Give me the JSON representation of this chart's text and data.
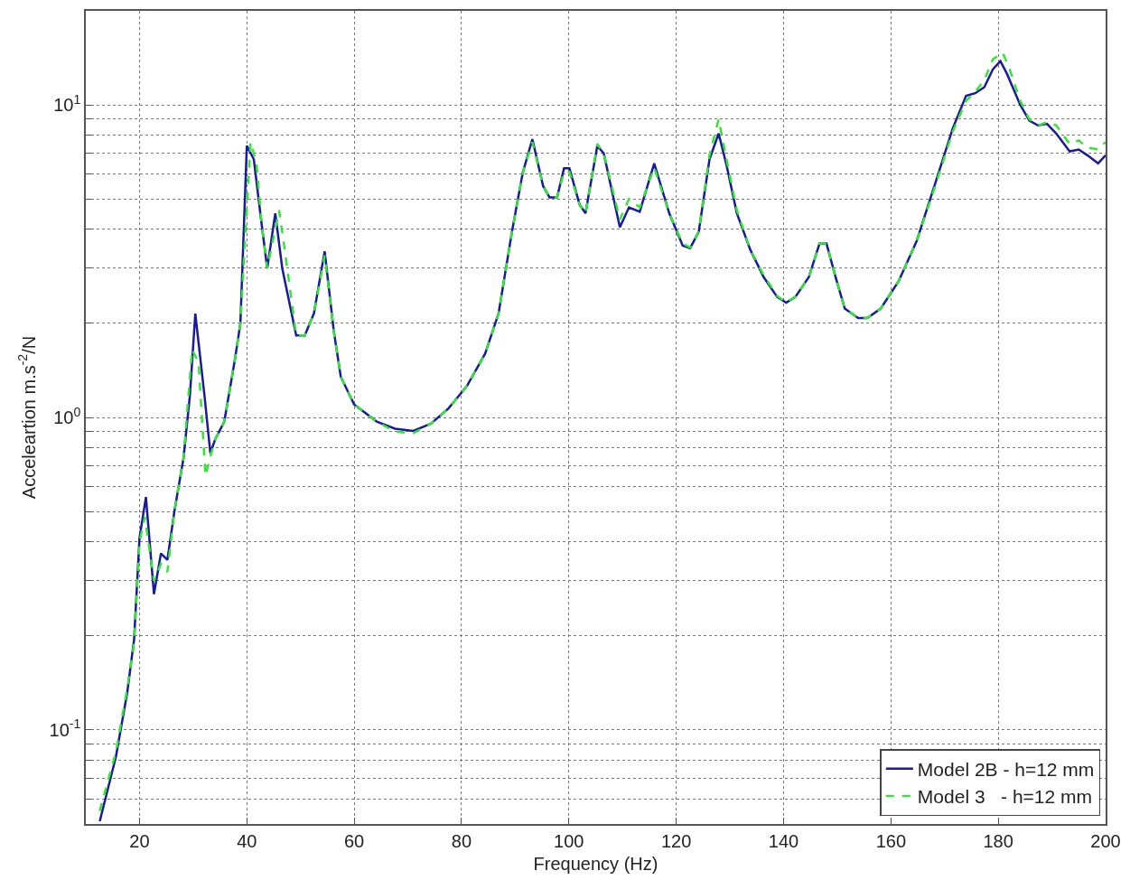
{
  "chart_data": {
    "type": "line",
    "xlabel": "Frequency (Hz)",
    "ylabel": "Acceleartion m.s$^{-2}$/N",
    "log": "y",
    "grid": true,
    "legend": "bottom right",
    "marker": "none",
    "xlim": [
      10,
      200
    ],
    "xticks": [
      20,
      40,
      60,
      80,
      100,
      120,
      140,
      160,
      180,
      200
    ],
    "ylim": [
      0.05,
      20
    ],
    "yticks": [
      {
        "value": 0.05,
        "label": null
      },
      {
        "value": 0.06,
        "label": null
      },
      {
        "value": 0.07,
        "label": null
      },
      {
        "value": 0.08,
        "label": null
      },
      {
        "value": 0.09,
        "label": null
      },
      {
        "value": 0.1,
        "label": "10$^{-1}$"
      },
      {
        "value": 0.2,
        "label": null
      },
      {
        "value": 0.3,
        "label": null
      },
      {
        "value": 0.4,
        "label": null
      },
      {
        "value": 0.5,
        "label": null
      },
      {
        "value": 0.6,
        "label": null
      },
      {
        "value": 0.7,
        "label": null
      },
      {
        "value": 0.8,
        "label": null
      },
      {
        "value": 0.9,
        "label": null
      },
      {
        "value": 1,
        "label": "10$^{0}$"
      },
      {
        "value": 2,
        "label": null
      },
      {
        "value": 3,
        "label": null
      },
      {
        "value": 4,
        "label": null
      },
      {
        "value": 5,
        "label": null
      },
      {
        "value": 6,
        "label": null
      },
      {
        "value": 7,
        "label": null
      },
      {
        "value": 8,
        "label": null
      },
      {
        "value": 9,
        "label": null
      },
      {
        "value": 10,
        "label": "10$^{1}$"
      },
      {
        "value": 20,
        "label": null
      }
    ],
    "series": [
      {
        "name": "Model 2B - h=12 mm",
        "color": "#1a1a9c",
        "line_style": "solid",
        "x": [
          12.6,
          15.6,
          17.7,
          19,
          20,
          21.2,
          22.7,
          24,
          25.2,
          26.5,
          28.2,
          29.4,
          30.4,
          32.1,
          33.2,
          34.1,
          35.8,
          37.8,
          38.8,
          40,
          41.3,
          42.8,
          43.8,
          45.3,
          46.6,
          49.2,
          50.8,
          52.5,
          54.5,
          56.2,
          57.5,
          60,
          64.2,
          67.6,
          71,
          74.3,
          77.6,
          81,
          84.4,
          86.9,
          89.4,
          91.4,
          93.2,
          95.2,
          96.4,
          97.8,
          99.1,
          100.1,
          102,
          103.1,
          105.3,
          106.5,
          109.5,
          111.2,
          113.2,
          115.9,
          118.7,
          121.2,
          122.6,
          124.2,
          126.2,
          127.9,
          129.3,
          131.3,
          133.8,
          136.3,
          138.8,
          140.5,
          142.2,
          144.7,
          146.7,
          148,
          149.7,
          151.4,
          153.9,
          155.6,
          158.1,
          161.4,
          164.8,
          168.1,
          171.5,
          174,
          175.7,
          177.4,
          179,
          180.4,
          181.6,
          184.1,
          185.8,
          187.4,
          189.1,
          190.8,
          193.3,
          195,
          196.6,
          198.6,
          200
        ],
        "values": [
          0.051,
          0.082,
          0.131,
          0.195,
          0.41,
          0.556,
          0.272,
          0.367,
          0.35,
          0.5,
          0.74,
          1.18,
          2.15,
          1.18,
          0.77,
          0.85,
          0.97,
          1.54,
          2.0,
          7.4,
          6.7,
          4.1,
          3.0,
          4.5,
          3.0,
          1.83,
          1.83,
          2.15,
          3.4,
          1.89,
          1.35,
          1.1,
          0.97,
          0.92,
          0.905,
          0.955,
          1.07,
          1.26,
          1.6,
          2.15,
          3.93,
          6.06,
          7.77,
          5.5,
          5.06,
          5.06,
          6.27,
          6.27,
          4.8,
          4.5,
          7.4,
          7.0,
          4.06,
          4.7,
          4.55,
          6.5,
          4.5,
          3.55,
          3.48,
          3.93,
          6.7,
          8.1,
          6.5,
          4.5,
          3.44,
          2.81,
          2.43,
          2.33,
          2.43,
          2.81,
          3.6,
          3.6,
          2.81,
          2.23,
          2.08,
          2.08,
          2.23,
          2.72,
          3.67,
          5.5,
          8.4,
          10.7,
          10.9,
          11.4,
          13.0,
          13.8,
          12.6,
          10.0,
          8.9,
          8.6,
          8.7,
          8.1,
          7.1,
          7.2,
          6.9,
          6.5,
          6.9
        ]
      },
      {
        "name": "Model 3   - h=12 mm",
        "color": "#33e633",
        "line_style": "dashed",
        "x": [
          12.6,
          15.6,
          17.7,
          19,
          20,
          21,
          22.7,
          24,
          25.2,
          26.5,
          28.2,
          29.8,
          31,
          32.3,
          33.2,
          34.1,
          35.8,
          37.8,
          38.8,
          40.7,
          41.8,
          42.8,
          43.8,
          46,
          47,
          49.2,
          50.8,
          52.5,
          54.5,
          56.2,
          57.5,
          60,
          64.2,
          67.6,
          71,
          74.3,
          77.6,
          81,
          84.4,
          86.9,
          89.4,
          91.4,
          93.2,
          95.2,
          96.4,
          97.8,
          99.1,
          100.1,
          102,
          103.1,
          105.3,
          106.5,
          109.5,
          111.2,
          113.2,
          115.9,
          118.7,
          121.2,
          122.6,
          124.2,
          126.2,
          127.9,
          129.3,
          131.3,
          133.8,
          136.3,
          138.8,
          140.5,
          142.2,
          144.7,
          146.7,
          148,
          149.7,
          151.4,
          153.9,
          155.6,
          158.1,
          161.4,
          164.8,
          168.1,
          171.5,
          174,
          175.7,
          177.4,
          179,
          180.8,
          182,
          184.1,
          185.8,
          187.4,
          189.1,
          190.8,
          193.3,
          195,
          196.6,
          198.6,
          200
        ],
        "values": [
          0.055,
          0.085,
          0.135,
          0.19,
          0.4,
          0.48,
          0.3,
          0.34,
          0.32,
          0.5,
          0.74,
          1.65,
          1.5,
          0.65,
          0.75,
          0.85,
          0.97,
          1.54,
          2.0,
          7.6,
          6.5,
          4.1,
          3.0,
          4.6,
          3.5,
          1.83,
          1.83,
          2.15,
          3.3,
          1.89,
          1.35,
          1.1,
          0.97,
          0.9,
          0.89,
          0.955,
          1.07,
          1.26,
          1.6,
          2.15,
          3.93,
          6.06,
          7.6,
          5.5,
          5.06,
          5.06,
          6.1,
          6.1,
          4.8,
          4.5,
          7.5,
          7.0,
          4.3,
          5.0,
          4.7,
          6.3,
          4.5,
          3.6,
          3.5,
          3.93,
          6.9,
          9.0,
          6.8,
          4.6,
          3.44,
          2.85,
          2.45,
          2.33,
          2.43,
          2.81,
          3.6,
          3.6,
          2.81,
          2.23,
          2.08,
          2.08,
          2.23,
          2.72,
          3.67,
          5.4,
          8.2,
          10.3,
          11.0,
          12.0,
          14.0,
          14.7,
          13.2,
          10.3,
          9.0,
          8.6,
          8.8,
          8.6,
          7.5,
          7.7,
          7.3,
          7.2,
          7.6
        ]
      }
    ]
  }
}
